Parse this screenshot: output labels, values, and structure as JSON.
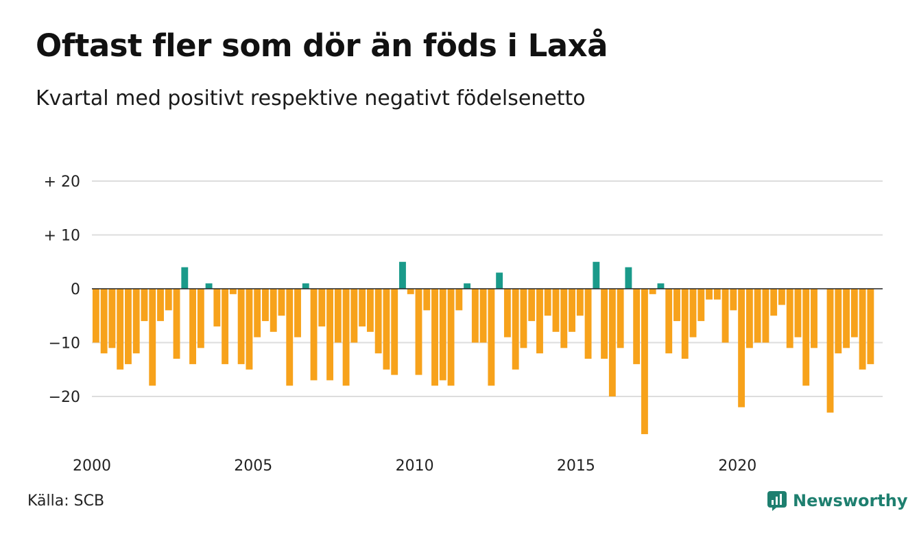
{
  "title": "Oftast fler som dör än föds i Laxå",
  "subtitle": "Kvartal med positivt respektive negativt födelsenetto",
  "source": "Källa: SCB",
  "brand": {
    "name": "Newsworthy",
    "icon": "newsworthy-logo-icon"
  },
  "colors": {
    "positive": "#1a9a8a",
    "negative": "#f7a21b",
    "grid": "#dddddd",
    "zero_line": "#222222",
    "brand": "#1e7f6f"
  },
  "chart_data": {
    "type": "bar",
    "title": "Oftast fler som dör än föds i Laxå",
    "subtitle": "Kvartal med positivt respektive negativt födelsenetto",
    "xlabel": "",
    "ylabel": "",
    "x_start": 2000,
    "periods_per_year": 4,
    "xlim": [
      2000,
      2024.5
    ],
    "ylim": [
      -28,
      22
    ],
    "y_ticks": [
      20,
      10,
      0,
      -10,
      -20
    ],
    "y_tick_labels": [
      "+ 20",
      "+ 10",
      "0",
      "−10",
      "−20"
    ],
    "x_ticks": [
      2000,
      2005,
      2010,
      2015,
      2020
    ],
    "x_tick_labels": [
      "2000",
      "2005",
      "2010",
      "2015",
      "2020"
    ],
    "grid": true,
    "values": [
      -10,
      -12,
      -11,
      -15,
      -14,
      -12,
      -6,
      -18,
      -6,
      -4,
      -13,
      4,
      -14,
      -11,
      1,
      -7,
      -14,
      -1,
      -14,
      -15,
      -9,
      -6,
      -8,
      -5,
      -18,
      -9,
      1,
      -17,
      -7,
      -17,
      -10,
      -18,
      -10,
      -7,
      -8,
      -12,
      -15,
      -16,
      5,
      -1,
      -16,
      -4,
      -18,
      -17,
      -18,
      -4,
      1,
      -10,
      -10,
      -18,
      3,
      -9,
      -15,
      -11,
      -6,
      -12,
      -5,
      -8,
      -11,
      -8,
      -5,
      -13,
      5,
      -13,
      -20,
      -11,
      4,
      -14,
      -27,
      -1,
      1,
      -12,
      -6,
      -13,
      -9,
      -6,
      -2,
      -2,
      -10,
      -4,
      -22,
      -11,
      -10,
      -10,
      -5,
      -3,
      -11,
      -9,
      -18,
      -11,
      0,
      -23,
      -12,
      -11,
      -9,
      -15,
      -14
    ]
  }
}
